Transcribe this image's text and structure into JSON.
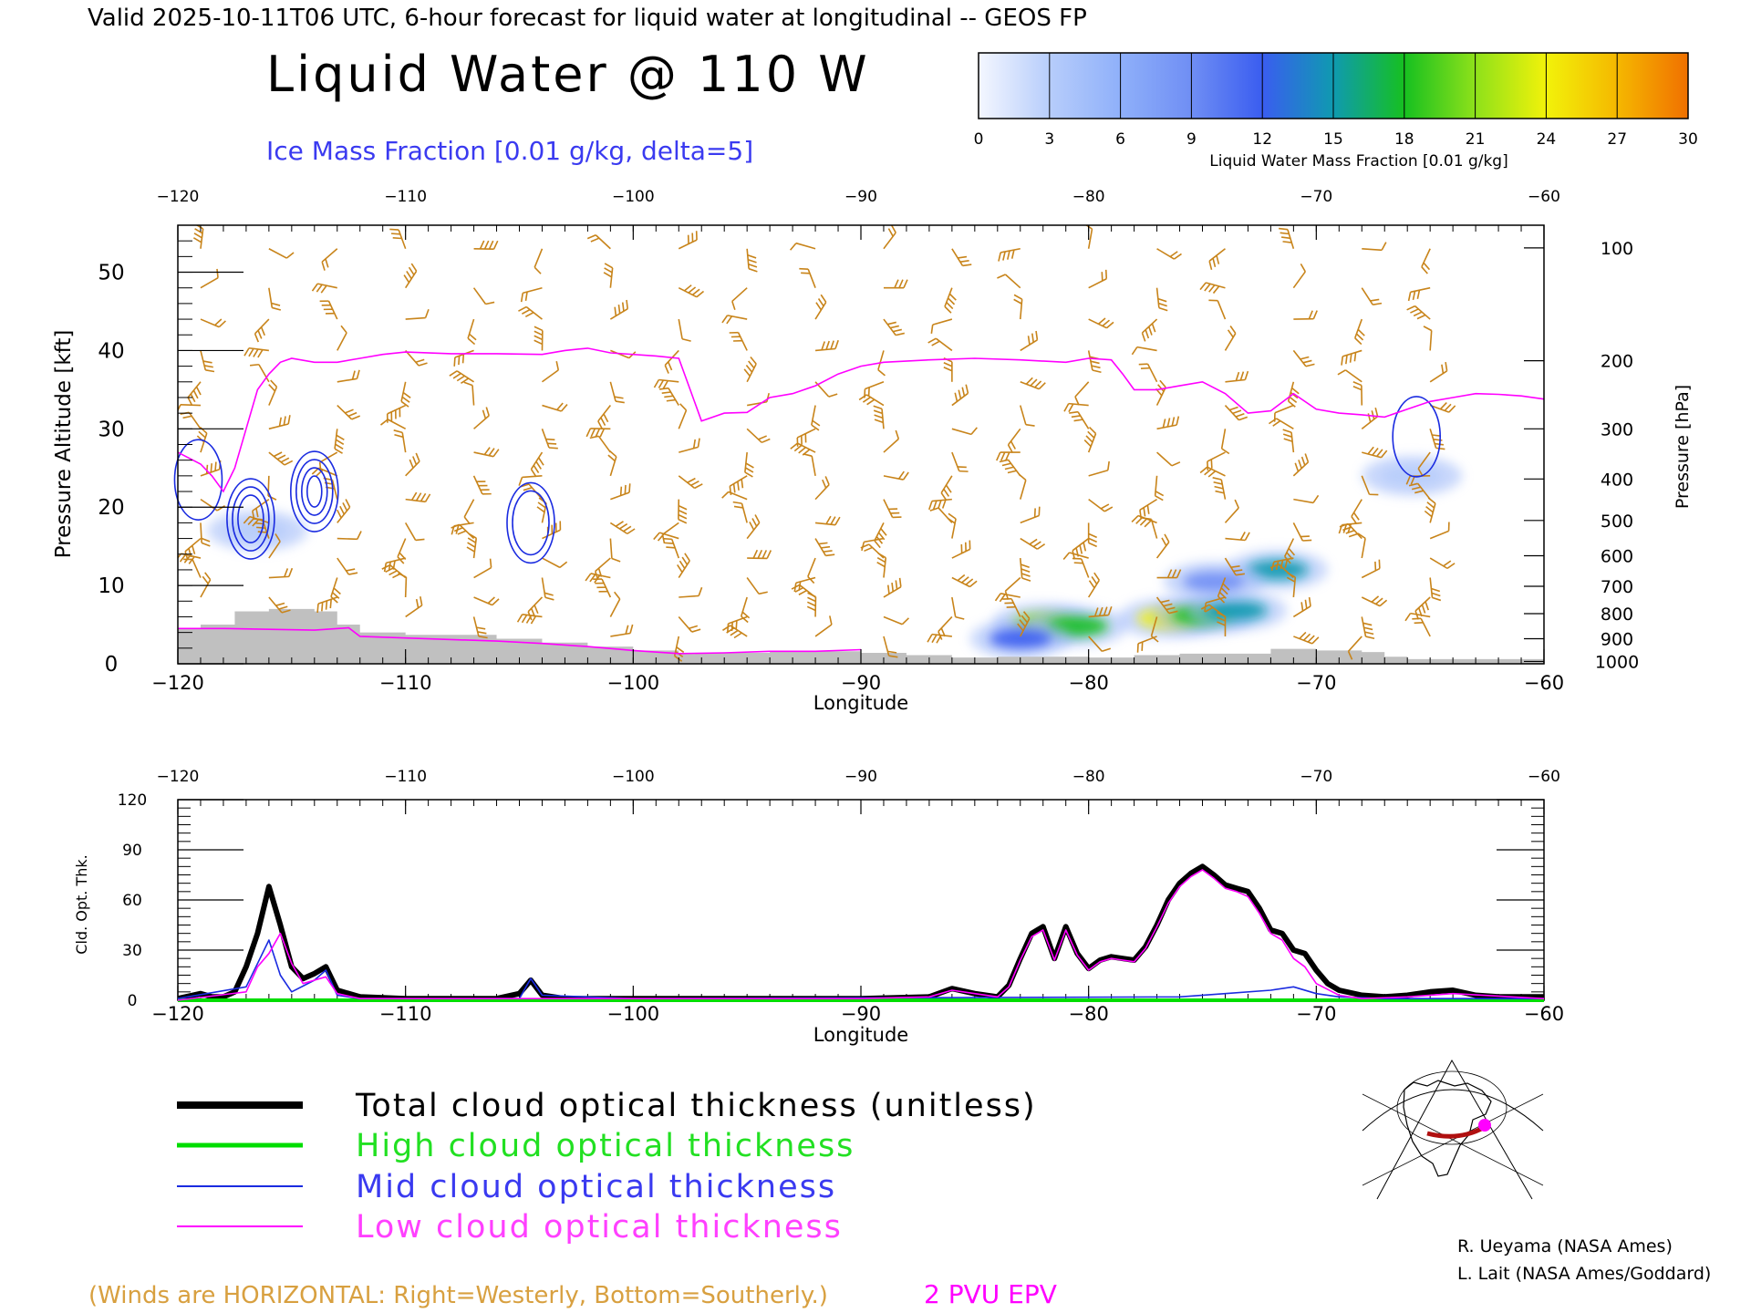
{
  "header": {
    "valid_line": "Valid 2025-10-11T06 UTC, 6-hour forecast for liquid water at longitudinal -- GEOS FP",
    "title": "Liquid Water @ 110 W",
    "subtitle": "Ice Mass Fraction [0.01 g/kg, delta=5]"
  },
  "colorbar": {
    "ticks": [
      "0",
      "3",
      "6",
      "9",
      "12",
      "15",
      "18",
      "21",
      "24",
      "27",
      "30"
    ],
    "label": "Liquid Water Mass Fraction [0.01 g/kg]",
    "colors": [
      "#f4f7ff",
      "#b7cdfb",
      "#8fb0fa",
      "#6f8ef4",
      "#3a5df0",
      "#0f9ab0",
      "#16c020",
      "#8ee11a",
      "#f2f20a",
      "#f5b800",
      "#f07000"
    ]
  },
  "colors": {
    "wind_barbs": "#c8841a",
    "epv_line": "#ff00ff",
    "ice_contour": "#1a2be0",
    "terrain": "#c0c0c0",
    "total": "#000000",
    "high": "#00dd00",
    "mid": "#1a2be0",
    "low": "#ff00ff"
  },
  "chart_data": [
    {
      "type": "heatmap",
      "title": "Liquid Water @ 110 W",
      "xlabel": "Longitude",
      "ylabel": "Pressure Altitude [kft]",
      "y2label": "Pressure [hPa]",
      "xlim": [
        -120,
        -60
      ],
      "ylim": [
        0,
        56
      ],
      "x_ticks": [
        "−120",
        "−110",
        "−100",
        "−90",
        "−80",
        "−70",
        "−60"
      ],
      "y_ticks": [
        "0",
        "10",
        "20",
        "30",
        "40",
        "50"
      ],
      "pressure_ticks": [
        {
          "label": "100",
          "kft": 53.1
        },
        {
          "label": "200",
          "kft": 38.7
        },
        {
          "label": "300",
          "kft": 30.0
        },
        {
          "label": "400",
          "kft": 23.6
        },
        {
          "label": "500",
          "kft": 18.3
        },
        {
          "label": "600",
          "kft": 13.8
        },
        {
          "label": "700",
          "kft": 9.9
        },
        {
          "label": "800",
          "kft": 6.4
        },
        {
          "label": "900",
          "kft": 3.2
        },
        {
          "label": "1000",
          "kft": 0.3
        }
      ],
      "epv_2pvu_line": [
        [
          -120,
          27
        ],
        [
          -119,
          25.5
        ],
        [
          -118.5,
          24
        ],
        [
          -118,
          22
        ],
        [
          -117.5,
          25
        ],
        [
          -117,
          30
        ],
        [
          -116.5,
          35
        ],
        [
          -116,
          37
        ],
        [
          -115.5,
          38.5
        ],
        [
          -115,
          39
        ],
        [
          -114,
          38.5
        ],
        [
          -113,
          38.5
        ],
        [
          -112,
          39
        ],
        [
          -111,
          39.5
        ],
        [
          -110,
          39.8
        ],
        [
          -108,
          39.6
        ],
        [
          -106,
          39.6
        ],
        [
          -104,
          39.5
        ],
        [
          -103,
          40
        ],
        [
          -102,
          40.3
        ],
        [
          -101,
          39.7
        ],
        [
          -99,
          39.3
        ],
        [
          -98,
          39
        ],
        [
          -97.5,
          35
        ],
        [
          -97,
          31
        ],
        [
          -96,
          32
        ],
        [
          -95,
          32.1
        ],
        [
          -94,
          34
        ],
        [
          -93,
          34.5
        ],
        [
          -92,
          35.5
        ],
        [
          -91,
          37
        ],
        [
          -90,
          38
        ],
        [
          -89,
          38.5
        ],
        [
          -87,
          38.8
        ],
        [
          -85,
          39
        ],
        [
          -83,
          38.8
        ],
        [
          -81,
          38.5
        ],
        [
          -80,
          39
        ],
        [
          -79,
          38.8
        ],
        [
          -78.5,
          37
        ],
        [
          -78,
          35
        ],
        [
          -77,
          35
        ],
        [
          -76,
          35.5
        ],
        [
          -75,
          36
        ],
        [
          -74,
          34.5
        ],
        [
          -73,
          32
        ],
        [
          -72,
          32.3
        ],
        [
          -71,
          34.5
        ],
        [
          -70,
          32.5
        ],
        [
          -69,
          32
        ],
        [
          -68,
          31.8
        ],
        [
          -67,
          31.5
        ],
        [
          -66,
          32.5
        ],
        [
          -65,
          33.5
        ],
        [
          -64,
          34
        ],
        [
          -63,
          34.5
        ],
        [
          -62,
          34.4
        ],
        [
          -61,
          34.2
        ],
        [
          -60,
          33.8
        ]
      ],
      "epv_lower_line": [
        [
          -120,
          4.5
        ],
        [
          -118,
          4.5
        ],
        [
          -116,
          4.4
        ],
        [
          -114,
          4.3
        ],
        [
          -112.5,
          4.6
        ],
        [
          -112,
          3.5
        ],
        [
          -110,
          3.3
        ],
        [
          -108,
          3.1
        ],
        [
          -106,
          2.9
        ],
        [
          -104,
          2.6
        ],
        [
          -102,
          2.2
        ],
        [
          -100,
          1.7
        ],
        [
          -98,
          1.3
        ],
        [
          -96,
          1.4
        ],
        [
          -94,
          1.6
        ],
        [
          -92,
          1.6
        ],
        [
          -90,
          1.8
        ]
      ],
      "terrain_kft": [
        [
          -120,
          4.5
        ],
        [
          -119,
          5
        ],
        [
          -117.5,
          6.7
        ],
        [
          -116,
          7
        ],
        [
          -114,
          6.7
        ],
        [
          -113,
          5
        ],
        [
          -112,
          4
        ],
        [
          -110,
          3.7
        ],
        [
          -108,
          3.7
        ],
        [
          -106,
          3.2
        ],
        [
          -104,
          2.7
        ],
        [
          -102,
          2.2
        ],
        [
          -100,
          1.7
        ],
        [
          -98,
          1.4
        ],
        [
          -94,
          1.6
        ],
        [
          -90,
          1.4
        ],
        [
          -88,
          1.1
        ],
        [
          -86,
          0.8
        ],
        [
          -84,
          0.9
        ],
        [
          -82,
          0.9
        ],
        [
          -80,
          0.8
        ],
        [
          -78,
          1.1
        ],
        [
          -76,
          1.3
        ],
        [
          -74,
          1.3
        ],
        [
          -72,
          1.9
        ],
        [
          -70,
          1.7
        ],
        [
          -68,
          1.5
        ],
        [
          -67,
          0.9
        ],
        [
          -66,
          0.6
        ],
        [
          -60,
          0.6
        ]
      ],
      "liquid_water_blobs": [
        {
          "lon": -82,
          "kft": 5.2,
          "value": 20
        },
        {
          "lon": -80.5,
          "kft": 4.8,
          "value": 17
        },
        {
          "lon": -76.5,
          "kft": 5.8,
          "value": 23
        },
        {
          "lon": -75,
          "kft": 6.2,
          "value": 18
        },
        {
          "lon": -73.5,
          "kft": 6.8,
          "value": 15
        },
        {
          "lon": -71.7,
          "kft": 12,
          "value": 15
        },
        {
          "lon": -74.5,
          "kft": 10.5,
          "value": 9
        },
        {
          "lon": -83,
          "kft": 3.2,
          "value": 12
        },
        {
          "lon": -116.5,
          "kft": 17,
          "value": 3
        },
        {
          "lon": -65.8,
          "kft": 24,
          "value": 4
        }
      ],
      "ice_contours": [
        {
          "lon": -116.8,
          "kft": 18.5,
          "levels": 3
        },
        {
          "lon": -114,
          "kft": 22,
          "levels": 4
        },
        {
          "lon": -104.5,
          "kft": 18,
          "levels": 2
        },
        {
          "lon": -119.1,
          "kft": 23.5,
          "levels": 1
        },
        {
          "lon": -65.6,
          "kft": 29,
          "levels": 1
        }
      ]
    },
    {
      "type": "line",
      "xlabel": "Longitude",
      "ylabel": "Cld. Opt. Thk.",
      "xlim": [
        -120,
        -60
      ],
      "ylim": [
        0,
        120
      ],
      "x_ticks": [
        "−120",
        "−110",
        "−100",
        "−90",
        "−80",
        "−70",
        "−60"
      ],
      "y_ticks": [
        "0",
        "30",
        "60",
        "90",
        "120"
      ],
      "series": [
        {
          "name": "Total cloud optical thickness (unitless)",
          "key": "total",
          "x": [
            -120,
            -119,
            -118.5,
            -118,
            -117.5,
            -117,
            -116.5,
            -116,
            -115.5,
            -115,
            -114.5,
            -114,
            -113.5,
            -113,
            -112,
            -110,
            -106,
            -105,
            -104.5,
            -104,
            -103,
            -100,
            -95,
            -90,
            -87,
            -86,
            -85,
            -84,
            -83.5,
            -83,
            -82.5,
            -82,
            -81.5,
            -81,
            -80.5,
            -80,
            -79.5,
            -79,
            -78.5,
            -78,
            -77.5,
            -77,
            -76.5,
            -76,
            -75.5,
            -75,
            -74.5,
            -74,
            -73.5,
            -73,
            -72.5,
            -72,
            -71.5,
            -71,
            -70.5,
            -70,
            -69.5,
            -69,
            -68,
            -67,
            -66,
            -65,
            -64,
            -63,
            -62,
            -60
          ],
          "y": [
            1,
            4,
            2,
            2,
            5,
            20,
            40,
            68,
            45,
            20,
            13,
            16,
            20,
            6,
            2,
            1,
            1,
            4,
            12,
            3,
            1,
            1,
            1,
            1,
            2,
            7,
            4,
            2,
            9,
            25,
            40,
            44,
            25,
            44,
            28,
            19,
            24,
            26,
            25,
            24,
            32,
            45,
            60,
            70,
            76,
            80,
            75,
            69,
            67,
            65,
            55,
            42,
            40,
            30,
            28,
            18,
            10,
            6,
            3,
            2,
            3,
            5,
            6,
            3,
            2,
            2
          ]
        },
        {
          "name": "High cloud optical thickness",
          "key": "high",
          "x": [
            -120,
            -60
          ],
          "y": [
            0,
            0
          ]
        },
        {
          "name": "Mid cloud optical thickness",
          "key": "mid",
          "x": [
            -120,
            -117,
            -116.5,
            -116,
            -115.5,
            -115,
            -114,
            -113.5,
            -113,
            -112,
            -105,
            -104.5,
            -104,
            -100,
            -76,
            -74,
            -72,
            -71,
            -70,
            -69,
            -67,
            -60
          ],
          "y": [
            1,
            8,
            22,
            36,
            15,
            5,
            12,
            18,
            3,
            1,
            1,
            13,
            3,
            1,
            2,
            4,
            6,
            8,
            4,
            2,
            1,
            1
          ]
        },
        {
          "name": "Low cloud optical thickness",
          "key": "low",
          "x": [
            -120,
            -117,
            -116.5,
            -116,
            -115.5,
            -115,
            -114.5,
            -114,
            -113.5,
            -113,
            -112,
            -90,
            -87,
            -86,
            -85,
            -84,
            -83.5,
            -83,
            -82.5,
            -82,
            -81.5,
            -81,
            -80.5,
            -80,
            -79.5,
            -79,
            -78.5,
            -78,
            -77.5,
            -77,
            -76.5,
            -76,
            -75.5,
            -75,
            -74.5,
            -74,
            -73.5,
            -73,
            -72.5,
            -72,
            -71.5,
            -71,
            -70.5,
            -70,
            -69,
            -68,
            -66,
            -64,
            -60
          ],
          "y": [
            0,
            5,
            20,
            28,
            40,
            22,
            10,
            12,
            14,
            4,
            1,
            1,
            2,
            6,
            4,
            2,
            8,
            24,
            38,
            42,
            24,
            42,
            27,
            18,
            23,
            25,
            24,
            23,
            31,
            44,
            58,
            68,
            74,
            78,
            73,
            67,
            65,
            62,
            52,
            40,
            36,
            25,
            20,
            10,
            3,
            1,
            2,
            4,
            1
          ]
        }
      ]
    }
  ],
  "legend": {
    "total": "Total cloud optical thickness (unitless)",
    "high": "High cloud optical thickness",
    "mid": "Mid cloud optical thickness",
    "low": "Low cloud optical thickness"
  },
  "footer": {
    "winds_note": "(Winds are HORIZONTAL: Right=Westerly, Bottom=Southerly.)",
    "epv_label": "2 PVU EPV",
    "credit1": "R. Ueyama (NASA Ames)",
    "credit2": "L. Lait (NASA Ames/Goddard)"
  }
}
